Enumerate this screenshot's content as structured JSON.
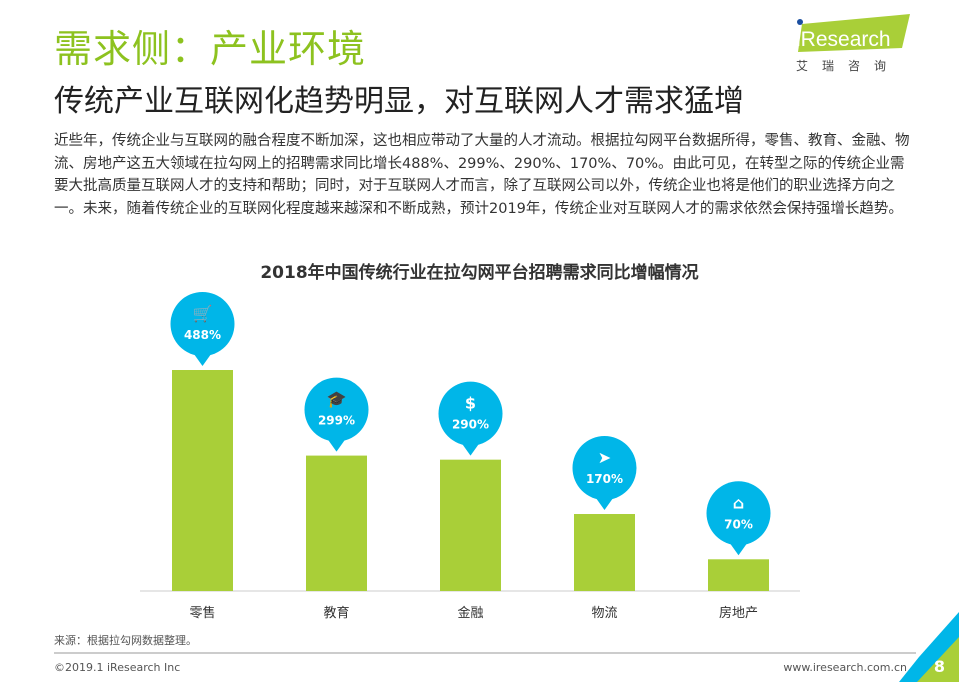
{
  "header": {
    "title": "需求侧：产业环境",
    "subtitle": "传统产业互联网化趋势明显，对互联网人才需求猛增"
  },
  "logo": {
    "text": "iResearch",
    "cn": "艾 瑞 咨 询"
  },
  "body": "近些年，传统企业与互联网的融合程度不断加深，这也相应带动了大量的人才流动。根据拉勾网平台数据所得，零售、教育、金融、物流、房地产这五大领域在拉勾网上的招聘需求同比增长488%、299%、290%、170%、70%。由此可见，在转型之际的传统企业需要大批高质量互联网人才的支持和帮助；同时，对于互联网人才而言，除了互联网公司以外，传统企业也将是他们的职业选择方向之一。未来，随着传统企业的互联网化程度越来越深和不断成熟，预计2019年，传统企业对互联网人才的需求依然会保持强增长趋势。",
  "chart_data": {
    "type": "bar",
    "title": "2018年中国传统行业在拉勾网平台招聘需求同比增幅情况",
    "categories": [
      "零售",
      "教育",
      "金融",
      "物流",
      "房地产"
    ],
    "values": [
      488,
      299,
      290,
      170,
      70
    ],
    "labels": [
      "488%",
      "299%",
      "290%",
      "170%",
      "70%"
    ],
    "icons": [
      "cart-icon",
      "graduation-cap-icon",
      "money-bag-icon",
      "paper-plane-icon",
      "house-icon"
    ],
    "unit": "%",
    "ylim": [
      0,
      500
    ],
    "grid": false,
    "colors": {
      "bar": "#a9cf38",
      "bubble": "#00b6e8"
    }
  },
  "footer": {
    "source": "来源：根据拉勾网数据整理。",
    "copyright": "©2019.1 iResearch Inc",
    "website": "www.iresearch.com.cn",
    "page": "8"
  }
}
